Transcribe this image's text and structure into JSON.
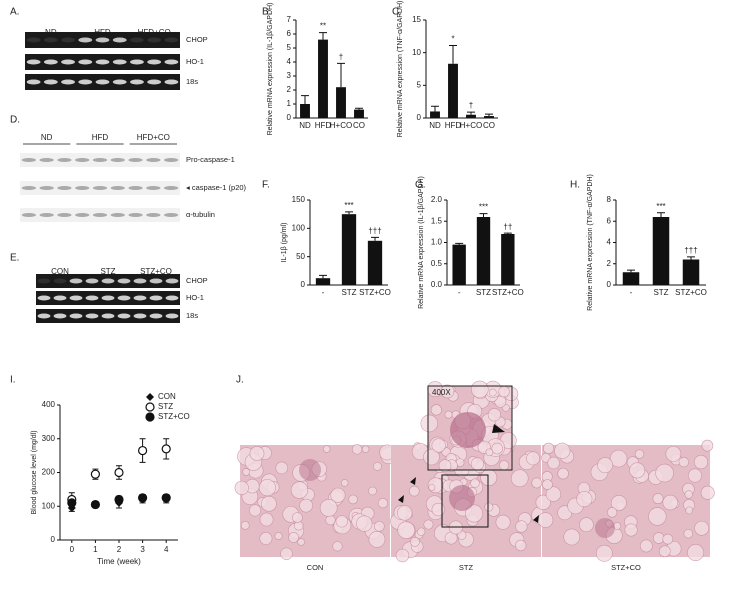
{
  "chart_data": [
    {
      "type": "bar",
      "label": "B.",
      "ylabel": "Relative mRNA expression (IL-1β/GAPDH)",
      "categories": [
        "ND",
        "HFD",
        "H+CO",
        "CO"
      ],
      "values": [
        1.0,
        5.6,
        2.2,
        0.6
      ],
      "errors": [
        0.6,
        0.5,
        1.7,
        0.1
      ],
      "annotations": [
        null,
        "**",
        "†",
        null
      ],
      "color": "#111111",
      "ylim": [
        0,
        7
      ],
      "yticks": [
        0,
        1,
        2,
        3,
        4,
        5,
        6,
        7
      ]
    },
    {
      "type": "bar",
      "label": "C.",
      "ylabel": "Relative mRNA expression (TNF-α/GAPDH)",
      "categories": [
        "ND",
        "HFD",
        "H+CO",
        "CO"
      ],
      "values": [
        1.0,
        8.3,
        0.5,
        0.3
      ],
      "errors": [
        0.8,
        2.8,
        0.4,
        0.3
      ],
      "annotations": [
        null,
        "*",
        "†",
        null
      ],
      "color": "#111111",
      "ylim": [
        0,
        15
      ],
      "yticks": [
        0,
        5,
        10,
        15
      ]
    },
    {
      "type": "bar",
      "label": "F.",
      "ylabel": "IL-1β (pg/ml)",
      "categories": [
        "-",
        "STZ",
        "STZ+CO"
      ],
      "values": [
        12,
        125,
        78
      ],
      "errors": [
        5,
        4,
        6
      ],
      "annotations": [
        null,
        "***",
        "†††"
      ],
      "color": "#111111",
      "ylim": [
        0,
        150
      ],
      "yticks": [
        0,
        50,
        100,
        150
      ]
    },
    {
      "type": "bar",
      "label": "G.",
      "ylabel": "Relative mRNA expression (IL-1β/GAPDH)",
      "categories": [
        "-",
        "STZ",
        "STZ+CO"
      ],
      "values": [
        0.95,
        1.6,
        1.2
      ],
      "errors": [
        0.03,
        0.08,
        0.02
      ],
      "annotations": [
        null,
        "***",
        "††"
      ],
      "color": "#111111",
      "ylim": [
        0,
        2
      ],
      "yticks": [
        {
          "value": 0,
          "label": "0.0"
        },
        0.5,
        {
          "value": 1,
          "label": "1.0"
        },
        1.5,
        {
          "value": 2,
          "label": "2.0"
        }
      ]
    },
    {
      "type": "bar",
      "label": "H.",
      "ylabel": "Relative mRNA expression (TNF-α/GAPDH)",
      "categories": [
        "-",
        "STZ",
        "STZ+CO"
      ],
      "values": [
        1.2,
        6.4,
        2.4
      ],
      "errors": [
        0.2,
        0.4,
        0.25
      ],
      "annotations": [
        null,
        "***",
        "†††"
      ],
      "color": "#111111",
      "ylim": [
        0,
        8
      ],
      "yticks": [
        0,
        2,
        4,
        6,
        8
      ]
    },
    {
      "type": "line",
      "label": "I.",
      "ylabel": "Blood glucose level (mg/dl)",
      "xlabel": "Time (week)",
      "x": [
        0,
        1,
        2,
        3,
        4
      ],
      "xlim": [
        -0.5,
        4.5
      ],
      "xticks": [
        0,
        1,
        2,
        3,
        4
      ],
      "ylim": [
        0,
        400
      ],
      "yticks": [
        0,
        100,
        200,
        300,
        400
      ],
      "series": [
        {
          "name": "CON",
          "color": "#111111",
          "marker": "diamond",
          "values": [
            95,
            105,
            110,
            120,
            120
          ],
          "errors": [
            10,
            8,
            15,
            10,
            10
          ]
        },
        {
          "name": "STZ",
          "color": "#111111",
          "marker": "circle-open",
          "values": [
            120,
            195,
            200,
            265,
            270
          ],
          "errors": [
            20,
            15,
            20,
            35,
            30
          ]
        },
        {
          "name": "STZ+CO",
          "color": "#111111",
          "marker": "circle",
          "values": [
            110,
            105,
            120,
            125,
            125
          ],
          "errors": [
            8,
            8,
            10,
            10,
            10
          ]
        }
      ]
    }
  ],
  "gels": [
    {
      "label": "A.",
      "groups": [
        "ND",
        "HFD",
        "HFD+CO"
      ],
      "bands": [
        "CHOP",
        "HO-1",
        "18s"
      ]
    },
    {
      "label": "D.",
      "groups": [
        "ND",
        "HFD",
        "HFD+CO"
      ],
      "bands": [
        "Pro-caspase-1",
        "◂ caspase-1 (p20)",
        "α-tubulin"
      ]
    },
    {
      "label": "E.",
      "groups": [
        "CON",
        "STZ",
        "STZ+CO"
      ],
      "bands": [
        "CHOP",
        "HO-1",
        "18s"
      ]
    }
  ],
  "histology": {
    "label": "J.",
    "inset_label": "400X",
    "captions": [
      "CON",
      "STZ",
      "STZ+CO"
    ]
  }
}
